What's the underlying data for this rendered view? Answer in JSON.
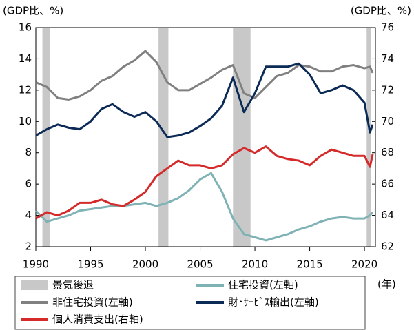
{
  "chart_data": {
    "type": "line",
    "y_label": "(GDP比、%)",
    "y2_label": "(GDP比、%)",
    "x_label": "(年)",
    "xlim": [
      1990,
      2021
    ],
    "xticks": [
      1990,
      1995,
      2000,
      2005,
      2010,
      2015,
      2020
    ],
    "ylim": [
      2,
      16
    ],
    "yticks": [
      2,
      4,
      6,
      8,
      10,
      12,
      14,
      16
    ],
    "y2lim": [
      62,
      76
    ],
    "y2ticks": [
      62,
      64,
      66,
      68,
      70,
      72,
      74,
      76
    ],
    "grid": false,
    "recessions": {
      "name": "景気後退",
      "color": "#c8c8c8",
      "spans": [
        [
          1990.6,
          1991.3
        ],
        [
          2001.2,
          2002.1
        ],
        [
          2008.0,
          2009.6
        ],
        [
          2020.2,
          2020.6
        ]
      ]
    },
    "x": [
      1990,
      1991,
      1992,
      1993,
      1994,
      1995,
      1996,
      1997,
      1998,
      1999,
      2000,
      2001,
      2002,
      2003,
      2004,
      2005,
      2006,
      2007,
      2008,
      2009,
      2010,
      2011,
      2012,
      2013,
      2014,
      2015,
      2016,
      2017,
      2018,
      2019,
      2020,
      2020.5,
      2020.75
    ],
    "series": [
      {
        "name": "住宅投資(左軸)",
        "color": "#7fb2b5",
        "axis": "y",
        "values": [
          4.3,
          3.6,
          3.8,
          4.0,
          4.3,
          4.4,
          4.5,
          4.6,
          4.6,
          4.7,
          4.8,
          4.6,
          4.8,
          5.1,
          5.6,
          6.3,
          6.7,
          5.5,
          3.8,
          2.8,
          2.6,
          2.4,
          2.6,
          2.8,
          3.1,
          3.3,
          3.6,
          3.8,
          3.9,
          3.8,
          3.8,
          4.0,
          4.2
        ]
      },
      {
        "name": "非住宅投資(左軸)",
        "color": "#808080",
        "axis": "y",
        "values": [
          12.5,
          12.2,
          11.5,
          11.4,
          11.6,
          12.0,
          12.6,
          12.9,
          13.5,
          13.9,
          14.5,
          13.8,
          12.5,
          12.0,
          12.0,
          12.4,
          12.8,
          13.3,
          13.6,
          11.8,
          11.5,
          12.2,
          12.9,
          13.1,
          13.6,
          13.5,
          13.2,
          13.2,
          13.5,
          13.6,
          13.4,
          13.5,
          13.1
        ]
      },
      {
        "name": "財･ｻｰﾋﾞｽ輸出(左軸)",
        "color": "#0b2a55",
        "axis": "y",
        "values": [
          9.1,
          9.5,
          9.8,
          9.6,
          9.5,
          10.0,
          10.8,
          11.1,
          10.6,
          10.3,
          10.6,
          10.0,
          9.0,
          9.1,
          9.3,
          9.7,
          10.2,
          11.0,
          12.8,
          10.6,
          11.8,
          13.5,
          13.5,
          13.5,
          13.7,
          13.0,
          11.8,
          12.0,
          12.3,
          12.0,
          11.2,
          9.3,
          9.8
        ]
      },
      {
        "name": "個人消費支出(右軸)",
        "color": "#d42a2a",
        "axis": "y2",
        "values": [
          63.8,
          64.2,
          64.0,
          64.3,
          64.8,
          64.8,
          65.0,
          64.7,
          64.6,
          65.0,
          65.5,
          66.5,
          67.0,
          67.5,
          67.2,
          67.2,
          67.0,
          67.2,
          67.9,
          68.3,
          68.0,
          68.4,
          67.8,
          67.6,
          67.5,
          67.2,
          67.8,
          68.2,
          68.0,
          67.8,
          67.8,
          67.1,
          67.9
        ]
      }
    ]
  }
}
